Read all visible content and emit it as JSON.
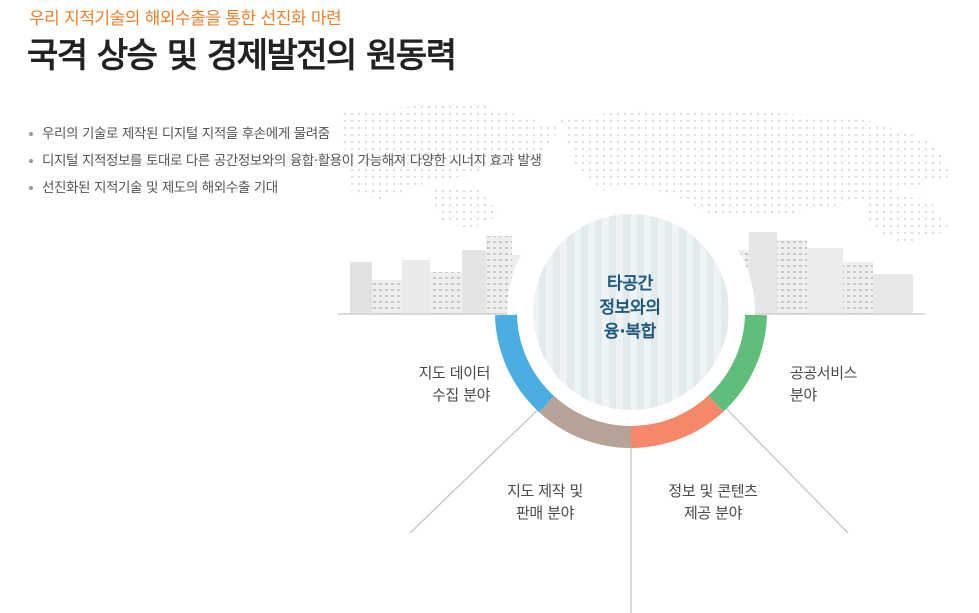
{
  "header": {
    "subtitle": "우리 지적기술의 해외수출을 통한 선진화 마련",
    "title": "국격 상승 및 경제발전의 원동력"
  },
  "bullets": [
    "우리의 기술로 제작된 디지털 지적을 후손에게 물려줌",
    "디지털 지적정보를 토대로 다른 공간정보와의 융합·활용이 가능해져 다양한 시너지 효과 발생",
    "선진화된 지적기술 및 제도의 해외수출 기대"
  ],
  "diagram": {
    "center": [
      "타공간",
      "정보와의",
      "융·복합"
    ],
    "segments": [
      {
        "lines": [
          "지도 데이터",
          "수집 분야"
        ],
        "color": "#4aaee0"
      },
      {
        "lines": [
          "지도 제작 및",
          "판매 분야"
        ],
        "color": "#b6a297"
      },
      {
        "lines": [
          "정보 및 콘텐츠",
          "제공 분야"
        ],
        "color": "#f5876a"
      },
      {
        "lines": [
          "공공서비스",
          "분야"
        ],
        "color": "#5fbf7a"
      }
    ],
    "colors": {
      "accent": "#f07f2a",
      "center_text": "#1f5a7c",
      "circle_fill": "#eaf0f3"
    }
  }
}
